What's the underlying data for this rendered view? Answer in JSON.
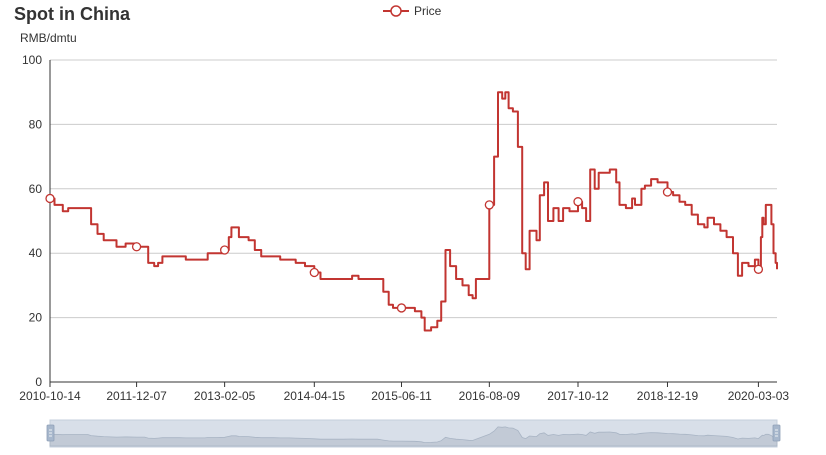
{
  "chart_data": {
    "type": "line",
    "title": "Spot in China",
    "ylabel": "RMB/dmtu",
    "xlabel": "",
    "ylim": [
      0,
      100
    ],
    "yticks": [
      0,
      20,
      40,
      60,
      80,
      100
    ],
    "xlim": [
      "2010-10-14",
      "2020-06-01"
    ],
    "xticks": [
      "2010-10-14",
      "2011-12-07",
      "2013-02-05",
      "2014-04-15",
      "2015-06-11",
      "2016-08-09",
      "2017-10-12",
      "2018-12-19",
      "2020-03-03"
    ],
    "grid": true,
    "legend": "top-center",
    "has_data_zoom": true,
    "series": [
      {
        "name": "Price",
        "color": "#c23531",
        "points": [
          [
            "2010-10-14",
            57
          ],
          [
            "2010-11-05",
            55
          ],
          [
            "2010-12-15",
            53
          ],
          [
            "2011-01-10",
            54
          ],
          [
            "2011-04-15",
            54
          ],
          [
            "2011-05-01",
            49
          ],
          [
            "2011-06-01",
            46
          ],
          [
            "2011-07-01",
            44
          ],
          [
            "2011-09-01",
            42
          ],
          [
            "2011-10-15",
            43
          ],
          [
            "2011-12-07",
            42
          ],
          [
            "2012-01-15",
            42
          ],
          [
            "2012-02-01",
            37
          ],
          [
            "2012-03-01",
            36
          ],
          [
            "2012-03-20",
            37
          ],
          [
            "2012-04-10",
            39
          ],
          [
            "2012-07-01",
            39
          ],
          [
            "2012-08-01",
            38
          ],
          [
            "2012-11-01",
            38
          ],
          [
            "2012-11-15",
            40
          ],
          [
            "2013-01-01",
            40
          ],
          [
            "2013-02-05",
            41
          ],
          [
            "2013-02-25",
            45
          ],
          [
            "2013-03-10",
            48
          ],
          [
            "2013-04-01",
            48
          ],
          [
            "2013-04-15",
            45
          ],
          [
            "2013-06-01",
            44
          ],
          [
            "2013-07-01",
            41
          ],
          [
            "2013-08-01",
            39
          ],
          [
            "2013-10-01",
            39
          ],
          [
            "2013-11-01",
            38
          ],
          [
            "2013-12-15",
            38
          ],
          [
            "2014-01-15",
            37
          ],
          [
            "2014-03-01",
            36
          ],
          [
            "2014-04-15",
            34
          ],
          [
            "2014-05-15",
            32
          ],
          [
            "2014-07-01",
            32
          ],
          [
            "2014-09-01",
            32
          ],
          [
            "2014-10-15",
            33
          ],
          [
            "2014-11-15",
            32
          ],
          [
            "2015-02-15",
            32
          ],
          [
            "2015-03-15",
            28
          ],
          [
            "2015-04-10",
            24
          ],
          [
            "2015-05-01",
            23
          ],
          [
            "2015-06-11",
            23
          ],
          [
            "2015-08-15",
            22
          ],
          [
            "2015-09-15",
            20
          ],
          [
            "2015-10-01",
            16
          ],
          [
            "2015-11-01",
            17
          ],
          [
            "2015-12-01",
            19
          ],
          [
            "2015-12-20",
            25
          ],
          [
            "2016-01-10",
            41
          ],
          [
            "2016-02-01",
            36
          ],
          [
            "2016-03-01",
            32
          ],
          [
            "2016-04-01",
            30
          ],
          [
            "2016-05-01",
            27
          ],
          [
            "2016-05-20",
            26
          ],
          [
            "2016-06-05",
            32
          ],
          [
            "2016-08-09",
            55
          ],
          [
            "2016-09-01",
            70
          ],
          [
            "2016-09-20",
            90
          ],
          [
            "2016-10-10",
            88
          ],
          [
            "2016-10-25",
            90
          ],
          [
            "2016-11-10",
            85
          ],
          [
            "2016-12-01",
            84
          ],
          [
            "2016-12-25",
            73
          ],
          [
            "2017-01-15",
            40
          ],
          [
            "2017-02-01",
            35
          ],
          [
            "2017-02-20",
            47
          ],
          [
            "2017-03-25",
            44
          ],
          [
            "2017-04-10",
            58
          ],
          [
            "2017-05-01",
            62
          ],
          [
            "2017-05-20",
            50
          ],
          [
            "2017-06-15",
            54
          ],
          [
            "2017-07-10",
            50
          ],
          [
            "2017-08-01",
            54
          ],
          [
            "2017-09-01",
            53
          ],
          [
            "2017-10-12",
            56
          ],
          [
            "2017-11-01",
            54
          ],
          [
            "2017-11-20",
            50
          ],
          [
            "2017-12-10",
            66
          ],
          [
            "2018-01-01",
            60
          ],
          [
            "2018-01-20",
            65
          ],
          [
            "2018-02-15",
            65
          ],
          [
            "2018-03-15",
            66
          ],
          [
            "2018-04-15",
            62
          ],
          [
            "2018-05-01",
            55
          ],
          [
            "2018-06-01",
            54
          ],
          [
            "2018-07-01",
            57
          ],
          [
            "2018-07-15",
            55
          ],
          [
            "2018-08-15",
            60
          ],
          [
            "2018-09-01",
            61
          ],
          [
            "2018-10-01",
            63
          ],
          [
            "2018-11-01",
            62
          ],
          [
            "2018-12-19",
            59
          ],
          [
            "2019-01-15",
            58
          ],
          [
            "2019-02-15",
            56
          ],
          [
            "2019-03-15",
            55
          ],
          [
            "2019-04-15",
            52
          ],
          [
            "2019-05-15",
            49
          ],
          [
            "2019-06-15",
            48
          ],
          [
            "2019-07-01",
            51
          ],
          [
            "2019-08-01",
            49
          ],
          [
            "2019-09-01",
            47
          ],
          [
            "2019-10-01",
            45
          ],
          [
            "2019-11-01",
            40
          ],
          [
            "2019-11-25",
            33
          ],
          [
            "2019-12-15",
            37
          ],
          [
            "2020-01-15",
            36
          ],
          [
            "2020-02-15",
            38
          ],
          [
            "2020-03-03",
            35
          ],
          [
            "2020-03-15",
            45
          ],
          [
            "2020-03-22",
            51
          ],
          [
            "2020-03-28",
            49
          ],
          [
            "2020-04-08",
            55
          ],
          [
            "2020-04-20",
            55
          ],
          [
            "2020-05-05",
            49
          ],
          [
            "2020-05-15",
            40
          ],
          [
            "2020-05-25",
            37
          ],
          [
            "2020-06-01",
            35
          ]
        ],
        "symbols": [
          [
            "2010-10-14",
            57
          ],
          [
            "2011-12-07",
            42
          ],
          [
            "2013-02-05",
            41
          ],
          [
            "2014-04-15",
            34
          ],
          [
            "2015-06-11",
            23
          ],
          [
            "2016-08-09",
            55
          ],
          [
            "2017-10-12",
            56
          ],
          [
            "2018-12-19",
            59
          ],
          [
            "2020-03-03",
            35
          ]
        ]
      }
    ]
  }
}
